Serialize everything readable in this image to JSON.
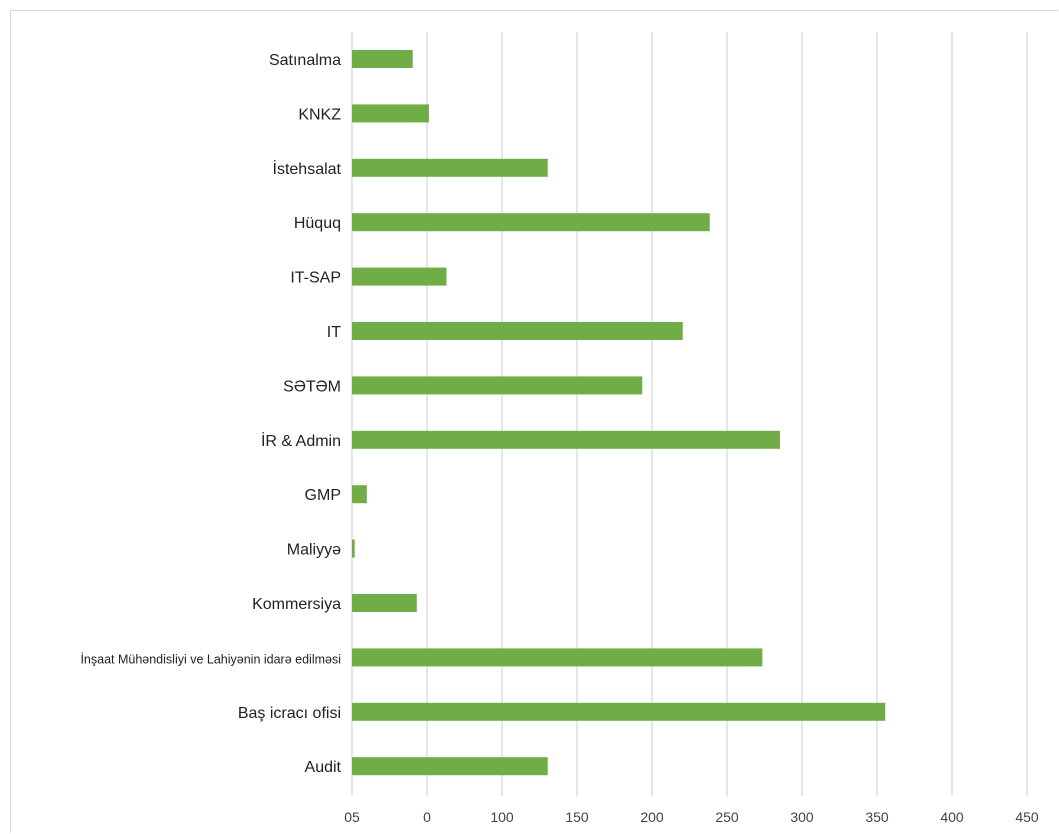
{
  "chart_data": {
    "type": "bar",
    "orientation": "horizontal",
    "categories": [
      "Satınalma",
      "KNKZ",
      "İstehsalat",
      "Hüquq",
      "IT-SAP",
      "IT",
      "SƏTƏM",
      "İR  & Admin",
      "GMP",
      "Maliyyə",
      "Kommersiya",
      "İnşaat Mühəndisliyi ve Lahiyənin idarə  edilməsi",
      "Baş icracı ofisi",
      "Audit"
    ],
    "values": [
      -5,
      7,
      95,
      215,
      20,
      195,
      165,
      267,
      -39,
      -48,
      -2,
      254,
      345,
      95
    ],
    "xlim": [
      -50,
      450
    ],
    "x_tick_labels": [
      "05",
      "0",
      "100",
      "150",
      "200",
      "250",
      "300",
      "350",
      "400",
      "450"
    ],
    "bar_color": "#70ad47",
    "grid": "vertical",
    "legend": "none"
  }
}
